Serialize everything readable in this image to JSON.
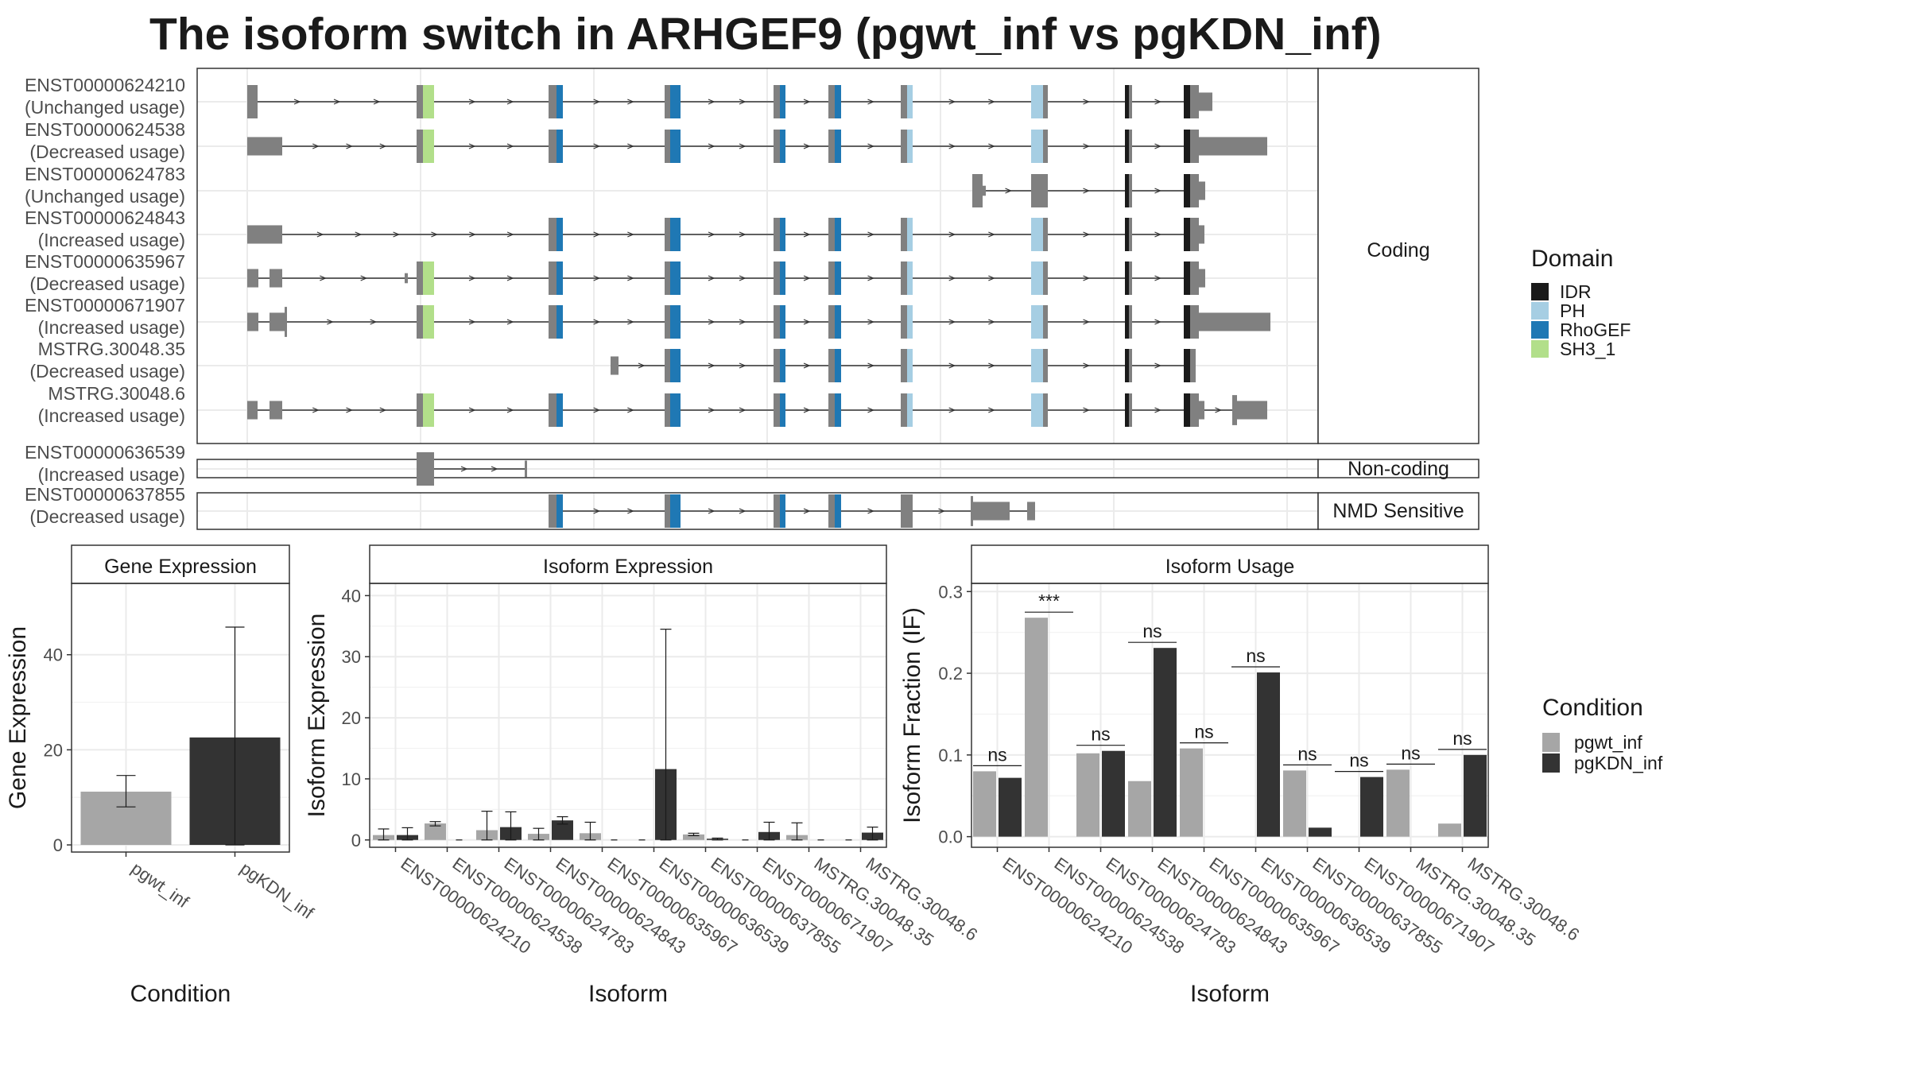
{
  "title": "The isoform switch in ARHGEF9 (pgwt_inf vs pgKDN_inf)",
  "colors": {
    "IDR": "#1a1a1a",
    "PH": "#a6cee3",
    "RhoGEF": "#1f78b4",
    "SH3_1": "#b2df8a",
    "exon": "#808080",
    "pgwt_inf": "#a6a6a6",
    "pgKDN_inf": "#333333"
  },
  "structure": {
    "groups": [
      {
        "label": "Coding",
        "isoforms": [
          {
            "id": "ENST00000624210",
            "usage": "(Unchanged usage)"
          },
          {
            "id": "ENST00000624538",
            "usage": "(Decreased usage)"
          },
          {
            "id": "ENST00000624783",
            "usage": "(Unchanged usage)"
          },
          {
            "id": "ENST00000624843",
            "usage": "(Increased usage)"
          },
          {
            "id": "ENST00000635967",
            "usage": "(Decreased usage)"
          },
          {
            "id": "ENST00000671907",
            "usage": "(Increased usage)"
          },
          {
            "id": "MSTRG.30048.35",
            "usage": "(Decreased usage)"
          },
          {
            "id": "MSTRG.30048.6",
            "usage": "(Increased usage)"
          }
        ]
      },
      {
        "label": "Non-coding",
        "isoforms": [
          {
            "id": "ENST00000636539",
            "usage": "(Increased usage)"
          }
        ]
      },
      {
        "label": "NMD Sensitive",
        "isoforms": [
          {
            "id": "ENST00000637855",
            "usage": "(Decreased usage)"
          }
        ]
      }
    ],
    "domain_legend": {
      "title": "Domain",
      "items": [
        "IDR",
        "PH",
        "RhoGEF",
        "SH3_1"
      ]
    }
  },
  "condition_legend": {
    "title": "Condition",
    "items": [
      "pgwt_inf",
      "pgKDN_inf"
    ]
  },
  "chart_data": [
    {
      "type": "bar",
      "title": "Gene Expression",
      "xlabel": "Condition",
      "ylabel": "Gene Expression",
      "categories": [
        "pgwt_inf",
        "pgKDN_inf"
      ],
      "values": [
        11.2,
        22.6
      ],
      "error_low": [
        8.0,
        0.0
      ],
      "error_high": [
        14.6,
        45.8
      ],
      "ylim": [
        -1.5,
        55
      ],
      "yticks": [
        0,
        20,
        40
      ]
    },
    {
      "type": "bar",
      "title": "Isoform Expression",
      "xlabel": "Isoform",
      "ylabel": "Isoform Expression",
      "categories": [
        "ENST00000624210",
        "ENST00000624538",
        "ENST00000624783",
        "ENST00000624843",
        "ENST00000635967",
        "ENST00000636539",
        "ENST00000637855",
        "ENST00000671907",
        "MSTRG.30048.35",
        "MSTRG.30048.6"
      ],
      "series": [
        {
          "name": "pgwt_inf",
          "values": [
            0.8,
            2.7,
            1.6,
            1.0,
            1.1,
            0.0,
            0.9,
            0.0,
            0.8,
            0.0
          ],
          "error_low": [
            0.0,
            2.3,
            0.0,
            0.0,
            0.0,
            0.0,
            0.7,
            0.0,
            0.0,
            0.0
          ],
          "error_high": [
            1.8,
            3.0,
            4.7,
            1.9,
            2.9,
            0.0,
            1.1,
            0.0,
            2.8,
            0.0
          ]
        },
        {
          "name": "pgKDN_inf",
          "values": [
            0.8,
            0.0,
            2.1,
            3.2,
            0.0,
            11.6,
            0.2,
            1.3,
            0.0,
            1.2
          ],
          "error_low": [
            0.0,
            0.0,
            0.0,
            2.6,
            0.0,
            0.0,
            0.0,
            0.0,
            0.0,
            0.0
          ],
          "error_high": [
            2.0,
            0.0,
            4.6,
            3.8,
            0.0,
            34.5,
            0.3,
            2.9,
            0.0,
            2.1
          ]
        }
      ],
      "ylim": [
        -1.2,
        42
      ],
      "yticks": [
        0,
        10,
        20,
        30,
        40
      ]
    },
    {
      "type": "bar",
      "title": "Isoform Usage",
      "xlabel": "Isoform",
      "ylabel": "Isoform Fraction (IF)",
      "categories": [
        "ENST00000624210",
        "ENST00000624538",
        "ENST00000624783",
        "ENST00000624843",
        "ENST00000635967",
        "ENST00000636539",
        "ENST00000637855",
        "ENST00000671907",
        "MSTRG.30048.35",
        "MSTRG.30048.6"
      ],
      "series": [
        {
          "name": "pgwt_inf",
          "values": [
            0.08,
            0.268,
            0.102,
            0.068,
            0.108,
            0.0,
            0.081,
            0.0,
            0.082,
            0.016
          ]
        },
        {
          "name": "pgKDN_inf",
          "values": [
            0.072,
            0.0,
            0.105,
            0.231,
            0.0,
            0.201,
            0.011,
            0.073,
            0.0,
            0.1
          ]
        }
      ],
      "significance": [
        "ns",
        "***",
        "ns",
        "ns",
        "ns",
        "ns",
        "ns",
        "ns",
        "ns",
        "ns"
      ],
      "ylim": [
        -0.013,
        0.31
      ],
      "yticks": [
        0.0,
        0.1,
        0.2,
        0.3
      ],
      "ytick_labels": [
        "0.0",
        "0.1",
        "0.2",
        "0.3"
      ]
    }
  ]
}
